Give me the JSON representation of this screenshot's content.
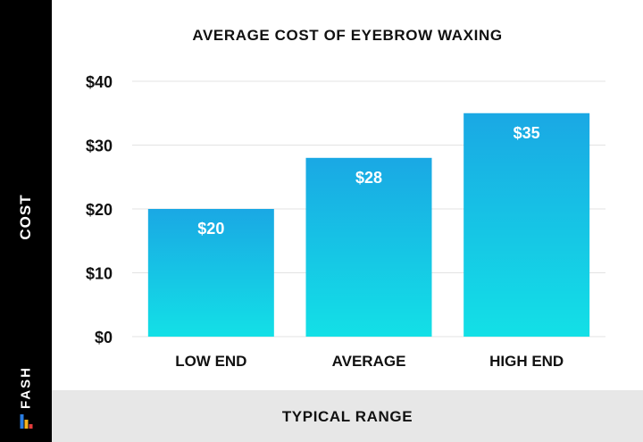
{
  "chart_data": {
    "type": "bar",
    "title": "AVERAGE COST OF EYEBROW WAXING",
    "xlabel": "TYPICAL RANGE",
    "ylabel": "COST",
    "categories": [
      "LOW END",
      "AVERAGE",
      "HIGH END"
    ],
    "values": [
      20,
      28,
      35
    ],
    "value_labels": [
      "$20",
      "$28",
      "$35"
    ],
    "yticks": [
      0,
      10,
      20,
      30,
      40
    ],
    "ytick_labels": [
      "$0",
      "$10",
      "$20",
      "$30",
      "$40"
    ],
    "ylim": [
      0,
      40
    ],
    "grid": true,
    "bar_gradient": [
      "#1aa8e4",
      "#13e0e6"
    ],
    "grid_color": "#e3e3e3"
  },
  "brand": {
    "name": "FASH",
    "logo_icon": "fash-logo-icon",
    "logo_colors": [
      "#2a7de1",
      "#f5b21b",
      "#e23b3b"
    ]
  }
}
